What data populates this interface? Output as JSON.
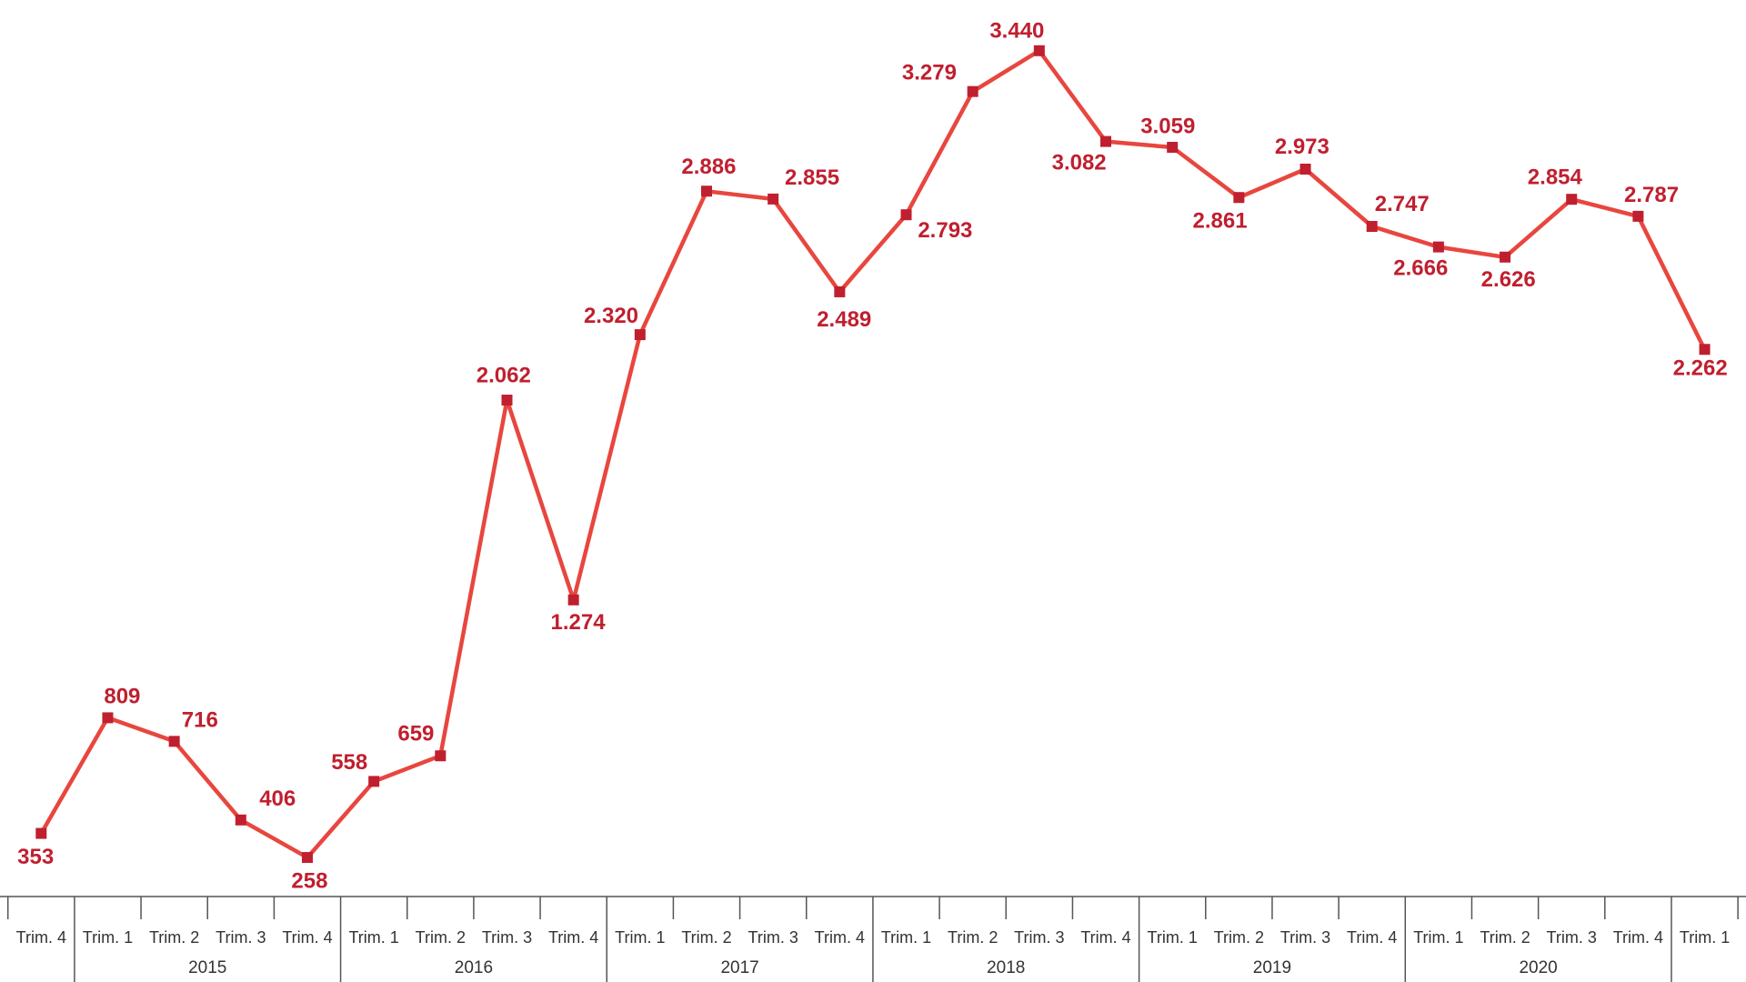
{
  "chart_data": {
    "type": "line",
    "categories": [
      "Trim. 4",
      "Trim. 1",
      "Trim. 2",
      "Trim. 3",
      "Trim. 4",
      "Trim. 1",
      "Trim. 2",
      "Trim. 3",
      "Trim. 4",
      "Trim. 1",
      "Trim. 2",
      "Trim. 3",
      "Trim. 4",
      "Trim. 1",
      "Trim. 2",
      "Trim. 3",
      "Trim. 4",
      "Trim. 1",
      "Trim. 2",
      "Trim. 3",
      "Trim. 4",
      "Trim. 1",
      "Trim. 2",
      "Trim. 3",
      "Trim. 4",
      "Trim. 1"
    ],
    "category_groups": [
      null,
      "2015",
      "2015",
      "2015",
      "2015",
      "2016",
      "2016",
      "2016",
      "2016",
      "2017",
      "2017",
      "2017",
      "2017",
      "2018",
      "2018",
      "2018",
      "2018",
      "2019",
      "2019",
      "2019",
      "2019",
      "2020",
      "2020",
      "2020",
      "2020",
      null
    ],
    "values": [
      353,
      809,
      716,
      406,
      258,
      558,
      659,
      2062,
      1274,
      2320,
      2886,
      2855,
      2489,
      2793,
      3279,
      3440,
      3082,
      3059,
      2861,
      2973,
      2747,
      2666,
      2626,
      2854,
      2787,
      2262
    ],
    "value_labels": [
      "353",
      "809",
      "716",
      "406",
      "258",
      "558",
      "659",
      "2.062",
      "1.274",
      "2.320",
      "2.886",
      "2.855",
      "2.489",
      "2.793",
      "3.279",
      "3.440",
      "3.082",
      "3.059",
      "2.861",
      "2.973",
      "2.747",
      "2.666",
      "2.626",
      "2.854",
      "2.787",
      "2.262"
    ],
    "color": "#e8463e",
    "marker_color": "#c01f2f",
    "label_color": "#c01f2f",
    "ylim": [
      0,
      3640
    ],
    "grid": false
  }
}
